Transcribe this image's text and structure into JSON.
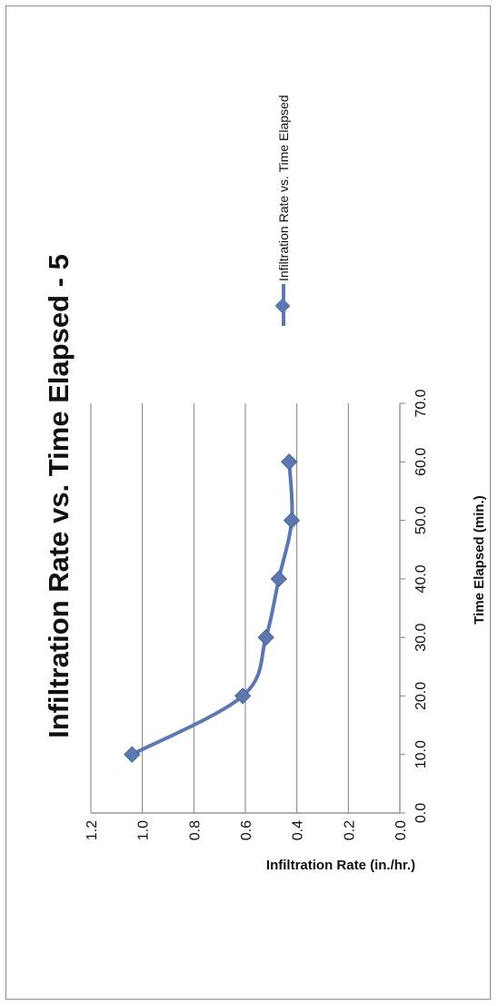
{
  "chart_data": {
    "type": "line",
    "title": "Infiltration Rate vs. Time Elapsed - 5",
    "xlabel": "Time Elapsed (min.)",
    "ylabel": "Infiltration Rate (in./hr.)",
    "xlim": [
      0,
      70
    ],
    "ylim": [
      0,
      1.2
    ],
    "x_ticks": [
      "0.0",
      "10.0",
      "20.0",
      "30.0",
      "40.0",
      "50.0",
      "60.0",
      "70.0"
    ],
    "y_ticks": [
      "0.0",
      "0.2",
      "0.4",
      "0.6",
      "0.8",
      "1.0",
      "1.2"
    ],
    "grid": "horizontal",
    "legend_position": "right",
    "orientation": "page rotated 90° counter-clockwise",
    "series": [
      {
        "name": "Infiltration Rate vs. Time Elapsed",
        "color": "#5b78b0",
        "marker": "diamond",
        "x": [
          10,
          20,
          30,
          40,
          50,
          60
        ],
        "y": [
          1.04,
          0.61,
          0.52,
          0.47,
          0.42,
          0.43
        ]
      }
    ]
  }
}
